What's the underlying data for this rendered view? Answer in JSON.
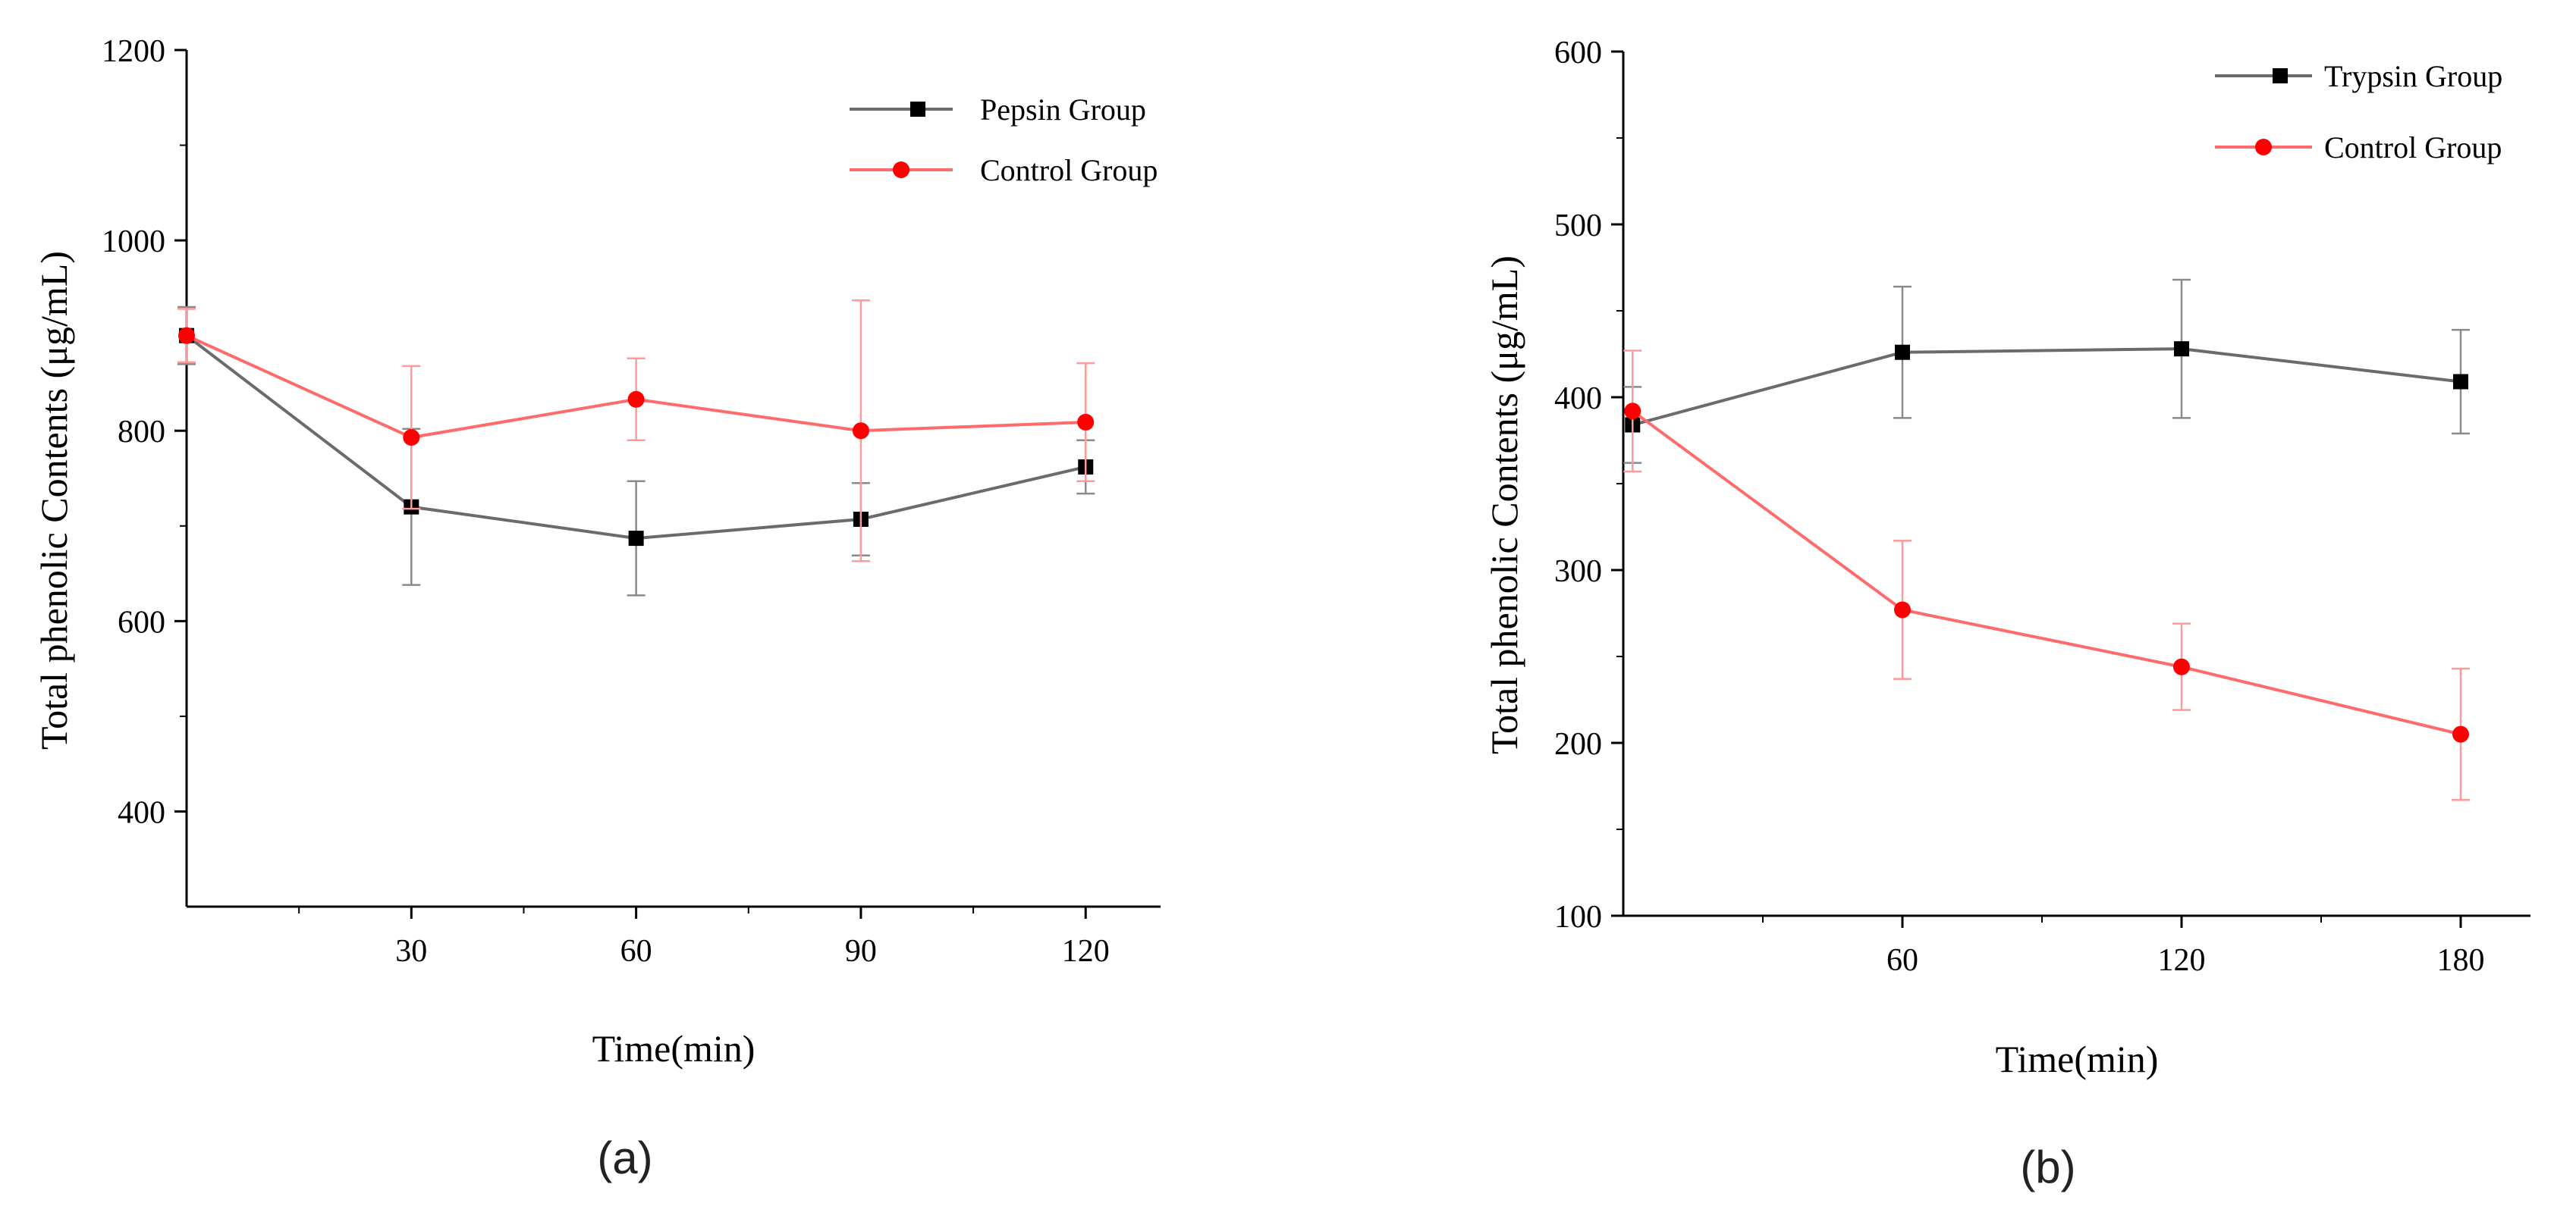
{
  "panels": [
    {
      "caption": "(a)"
    },
    {
      "caption": "(b)"
    }
  ],
  "chart_data": [
    {
      "type": "line",
      "panel_label": "(a)",
      "xlabel": "Time(min)",
      "ylabel": "Total phenolic Contents (μg/mL)",
      "xlim": [
        0,
        130
      ],
      "ylim": [
        300,
        1200
      ],
      "xticks": [
        30,
        60,
        90,
        120
      ],
      "xtick_labels": [
        "30",
        "60",
        "90",
        "120"
      ],
      "xminor": [
        15,
        45,
        75,
        105
      ],
      "yticks": [
        400,
        600,
        800,
        1000,
        1200
      ],
      "ytick_labels": [
        "400",
        "600",
        "800",
        "1000",
        "1200"
      ],
      "yminor": [
        500,
        700,
        900,
        1100
      ],
      "legend": "top-right",
      "series": [
        {
          "name": "Pepsin Group",
          "color": "#6b6b6b",
          "marker_color": "#000000",
          "marker": "square",
          "x": [
            0,
            30,
            60,
            90,
            120
          ],
          "y": [
            900,
            720,
            687,
            707,
            762
          ],
          "err": [
            30,
            82,
            60,
            38,
            28
          ]
        },
        {
          "name": "Control Group",
          "color": "#ff6b6b",
          "marker_color": "#ff0000",
          "marker": "circle",
          "x": [
            0,
            30,
            60,
            90,
            120
          ],
          "y": [
            900,
            793,
            833,
            800,
            809
          ],
          "err": [
            28,
            75,
            43,
            137,
            62
          ]
        }
      ]
    },
    {
      "type": "line",
      "panel_label": "(b)",
      "xlabel": "Time(min)",
      "ylabel": "Total phenolic Contents (μg/mL)",
      "xlim": [
        0,
        195
      ],
      "ylim": [
        100,
        600
      ],
      "xticks": [
        60,
        120,
        180
      ],
      "xtick_labels": [
        "60",
        "120",
        "180"
      ],
      "xminor": [
        30,
        90,
        150
      ],
      "yticks": [
        100,
        200,
        300,
        400,
        500,
        600
      ],
      "ytick_labels": [
        "100",
        "200",
        "300",
        "400",
        "500",
        "600"
      ],
      "yminor": [
        150,
        250,
        350,
        450,
        550
      ],
      "legend": "top-right",
      "series": [
        {
          "name": "Trypsin Group",
          "color": "#6b6b6b",
          "marker_color": "#000000",
          "marker": "square",
          "x": [
            2,
            60,
            120,
            180
          ],
          "y": [
            384,
            426,
            428,
            409
          ],
          "err": [
            22,
            38,
            40,
            30
          ]
        },
        {
          "name": "Control Group",
          "color": "#ff6b6b",
          "marker_color": "#ff0000",
          "marker": "circle",
          "x": [
            2,
            60,
            120,
            180
          ],
          "y": [
            392,
            277,
            244,
            205
          ],
          "err": [
            35,
            40,
            25,
            38
          ]
        }
      ]
    }
  ]
}
